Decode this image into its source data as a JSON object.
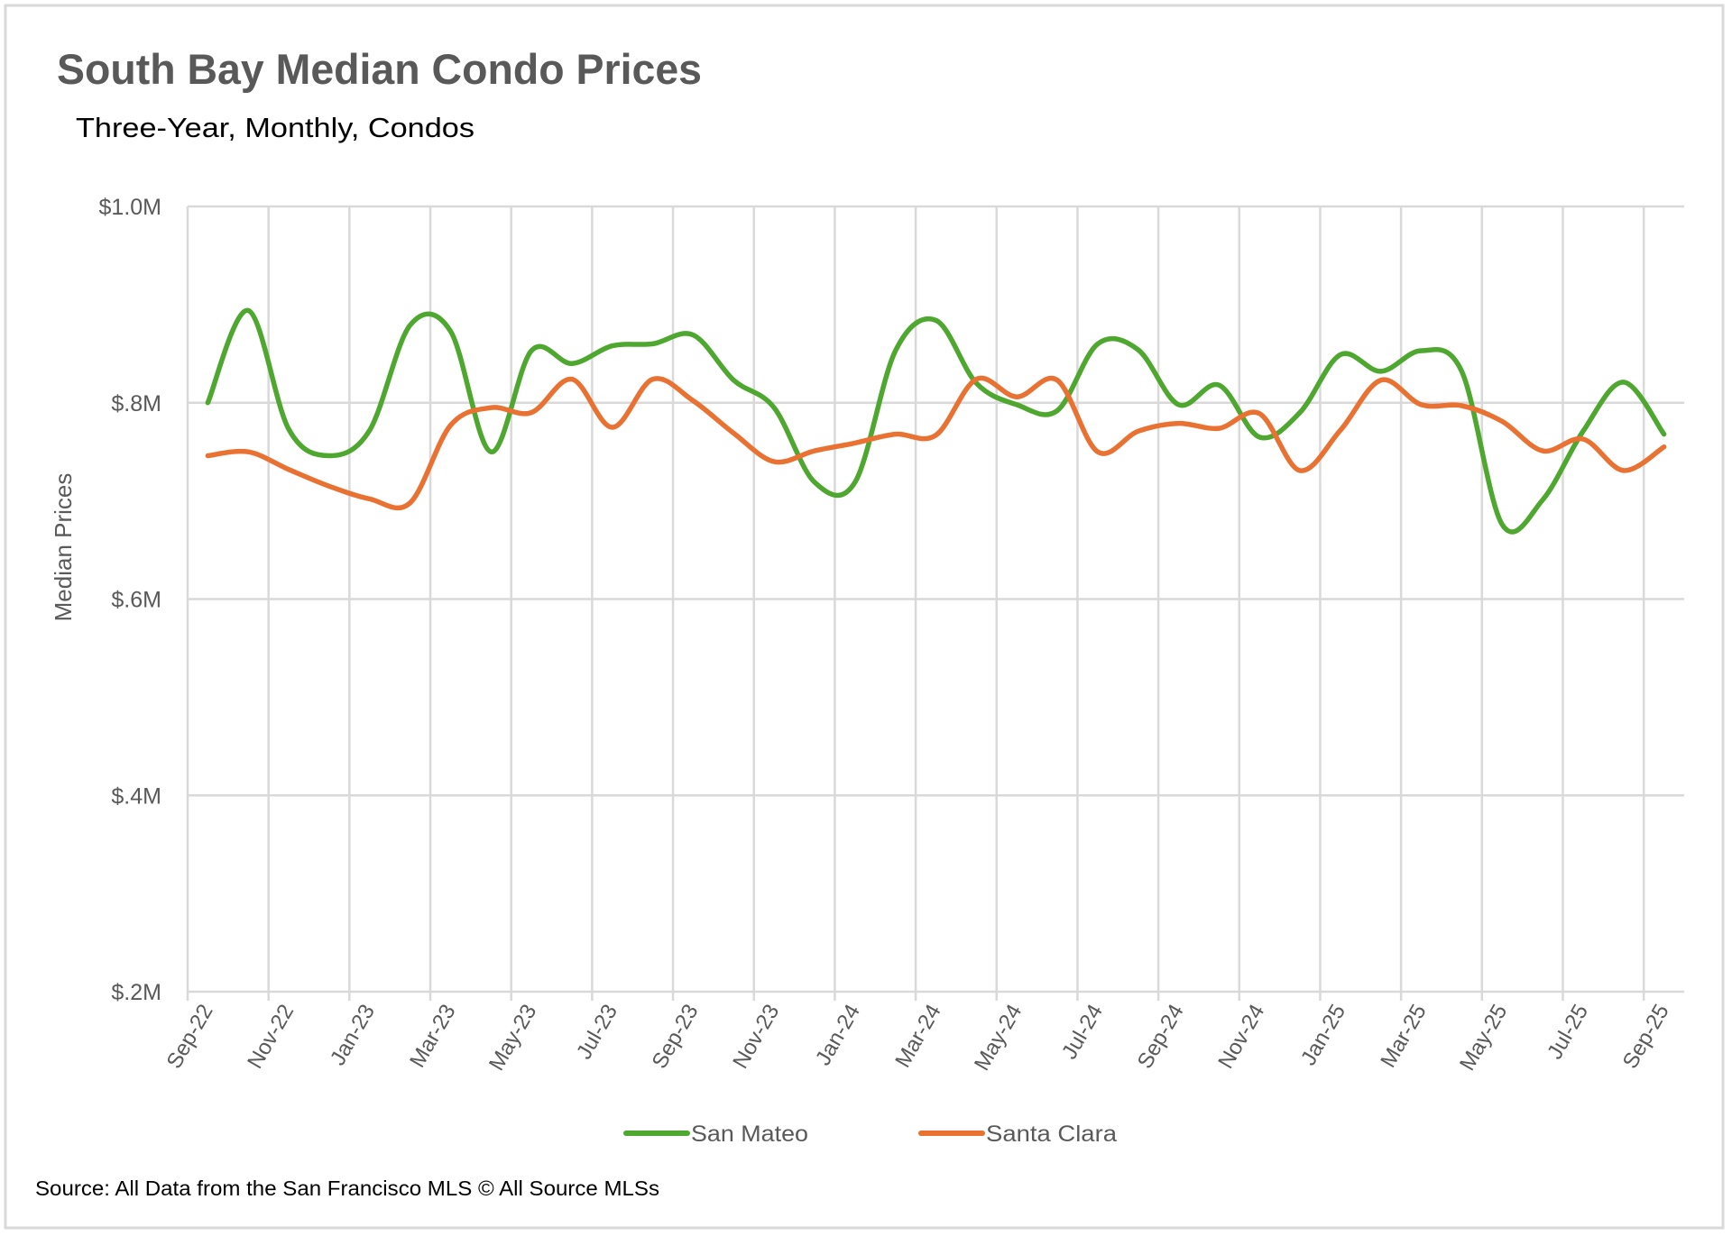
{
  "chart_data": {
    "type": "line",
    "title": "South Bay Median Condo Prices",
    "subtitle": "Three-Year, Monthly, Condos",
    "xlabel": "",
    "ylabel": "Median Prices",
    "y_unit": "$M",
    "ylim": [
      0.2,
      1.0
    ],
    "yticks": [
      1.0,
      0.8,
      0.6,
      0.4,
      0.2
    ],
    "ytick_labels": [
      "$1.0M",
      "$.8M",
      "$.6M",
      "$.4M",
      "$.2M"
    ],
    "grid": true,
    "smoothed": true,
    "legend_position": "bottom",
    "categories": [
      "Sep-22",
      "Oct-22",
      "Nov-22",
      "Dec-22",
      "Jan-23",
      "Feb-23",
      "Mar-23",
      "Apr-23",
      "May-23",
      "Jun-23",
      "Jul-23",
      "Aug-23",
      "Sep-23",
      "Oct-23",
      "Nov-23",
      "Dec-23",
      "Jan-24",
      "Feb-24",
      "Mar-24",
      "Apr-24",
      "May-24",
      "Jun-24",
      "Jul-24",
      "Aug-24",
      "Sep-24",
      "Oct-24",
      "Nov-24",
      "Dec-24",
      "Jan-25",
      "Feb-25",
      "Mar-25",
      "Apr-25",
      "May-25",
      "Jun-25",
      "Jul-25",
      "Aug-25",
      "Sep-25"
    ],
    "xtick_labels": [
      "Sep-22",
      "Nov-22",
      "Jan-23",
      "Mar-23",
      "May-23",
      "Jul-23",
      "Sep-23",
      "Nov-23",
      "Jan-24",
      "Mar-24",
      "May-24",
      "Jul-24",
      "Sep-24",
      "Nov-24",
      "Jan-25",
      "Mar-25",
      "May-25",
      "Jul-25",
      "Sep-25"
    ],
    "series": [
      {
        "name": "San Mateo",
        "color": "#4ea72e",
        "values": [
          0.8,
          0.894,
          0.773,
          0.746,
          0.772,
          0.879,
          0.873,
          0.75,
          0.853,
          0.84,
          0.858,
          0.86,
          0.869,
          0.823,
          0.795,
          0.719,
          0.719,
          0.853,
          0.884,
          0.82,
          0.798,
          0.792,
          0.86,
          0.854,
          0.798,
          0.818,
          0.765,
          0.79,
          0.849,
          0.832,
          0.853,
          0.832,
          0.676,
          0.701,
          0.771,
          0.821,
          0.768
        ]
      },
      {
        "name": "Santa Clara",
        "color": "#e97132",
        "values": [
          0.746,
          0.75,
          0.732,
          0.715,
          0.702,
          0.698,
          0.777,
          0.795,
          0.79,
          0.824,
          0.775,
          0.824,
          0.802,
          0.769,
          0.74,
          0.751,
          0.759,
          0.768,
          0.767,
          0.824,
          0.806,
          0.823,
          0.75,
          0.771,
          0.779,
          0.774,
          0.789,
          0.731,
          0.772,
          0.823,
          0.798,
          0.797,
          0.781,
          0.751,
          0.763,
          0.731,
          0.755
        ]
      }
    ],
    "source": "Source: All Data from the San Francisco MLS © All Source MLSs"
  }
}
